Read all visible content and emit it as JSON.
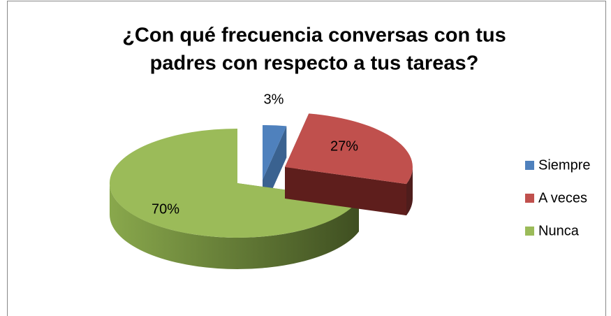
{
  "chart_data": {
    "type": "pie",
    "title": [
      "¿Con qué frecuencia conversas con tus",
      "padres con respecto a tus tareas?"
    ],
    "categories": [
      "Siempre",
      "A veces",
      "Nunca"
    ],
    "values": [
      3,
      27,
      70
    ],
    "value_labels": [
      "3%",
      "27%",
      "70%"
    ],
    "colors": [
      "#4f81bd",
      "#c0504d",
      "#9bbb59"
    ],
    "legend": "right"
  }
}
